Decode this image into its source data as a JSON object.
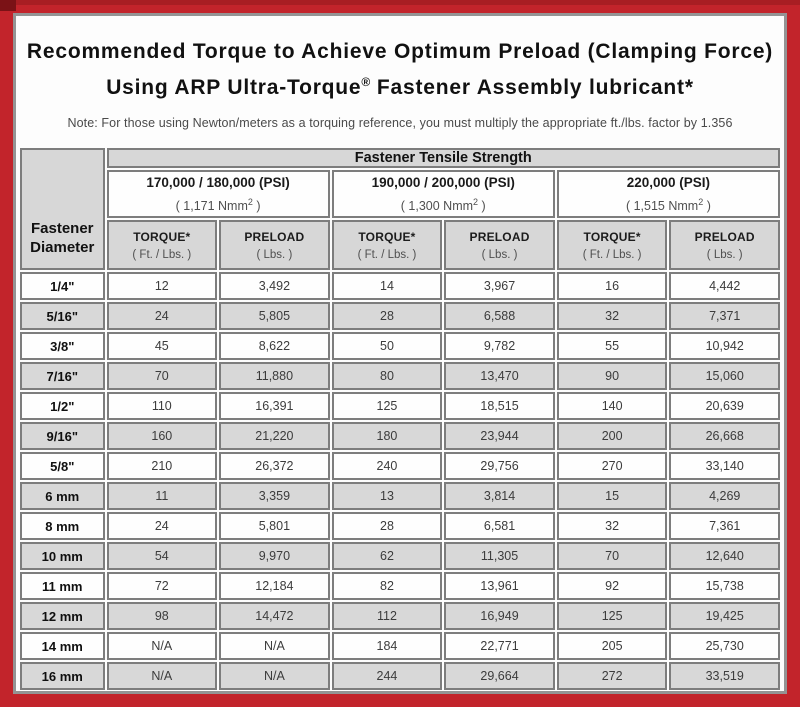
{
  "page": {
    "title_line1": "Recommended Torque to Achieve Optimum Preload (Clamping Force)",
    "title_line2_pre": "Using ARP Ultra-Torque",
    "title_line2_sup": "®",
    "title_line2_post": " Fastener Assembly lubricant*",
    "note": "Note: For those using Newton/meters as a torquing reference, you must multiply the appropriate ft./lbs. factor by 1.356"
  },
  "table": {
    "corner_header_line1": "Fastener",
    "corner_header_line2": "Diameter",
    "group_header": "Fastener Tensile Strength",
    "strength_groups": [
      {
        "psi": "170,000 / 180,000 (PSI)",
        "nmm_pre": "( 1,171 Nmm",
        "nmm_sup": "2",
        "nmm_post": " )"
      },
      {
        "psi": "190,000 / 200,000 (PSI)",
        "nmm_pre": "( 1,300 Nmm",
        "nmm_sup": "2",
        "nmm_post": " )"
      },
      {
        "psi": "220,000 (PSI)",
        "nmm_pre": "( 1,515 Nmm",
        "nmm_sup": "2",
        "nmm_post": " )"
      }
    ],
    "sub_headers": [
      {
        "label": "TORQUE*",
        "unit": "( Ft. / Lbs. )"
      },
      {
        "label": "PRELOAD",
        "unit": "( Lbs. )"
      }
    ],
    "rows": [
      {
        "diameter": "1/4\"",
        "values": [
          "12",
          "3,492",
          "14",
          "3,967",
          "16",
          "4,442"
        ]
      },
      {
        "diameter": "5/16\"",
        "values": [
          "24",
          "5,805",
          "28",
          "6,588",
          "32",
          "7,371"
        ]
      },
      {
        "diameter": "3/8\"",
        "values": [
          "45",
          "8,622",
          "50",
          "9,782",
          "55",
          "10,942"
        ]
      },
      {
        "diameter": "7/16\"",
        "values": [
          "70",
          "11,880",
          "80",
          "13,470",
          "90",
          "15,060"
        ]
      },
      {
        "diameter": "1/2\"",
        "values": [
          "110",
          "16,391",
          "125",
          "18,515",
          "140",
          "20,639"
        ]
      },
      {
        "diameter": "9/16\"",
        "values": [
          "160",
          "21,220",
          "180",
          "23,944",
          "200",
          "26,668"
        ]
      },
      {
        "diameter": "5/8\"",
        "values": [
          "210",
          "26,372",
          "240",
          "29,756",
          "270",
          "33,140"
        ]
      },
      {
        "diameter": "6 mm",
        "values": [
          "11",
          "3,359",
          "13",
          "3,814",
          "15",
          "4,269"
        ]
      },
      {
        "diameter": "8 mm",
        "values": [
          "24",
          "5,801",
          "28",
          "6,581",
          "32",
          "7,361"
        ]
      },
      {
        "diameter": "10 mm",
        "values": [
          "54",
          "9,970",
          "62",
          "11,305",
          "70",
          "12,640"
        ]
      },
      {
        "diameter": "11 mm",
        "values": [
          "72",
          "12,184",
          "82",
          "13,961",
          "92",
          "15,738"
        ]
      },
      {
        "diameter": "12 mm",
        "values": [
          "98",
          "14,472",
          "112",
          "16,949",
          "125",
          "19,425"
        ]
      },
      {
        "diameter": "14 mm",
        "values": [
          "N/A",
          "N/A",
          "184",
          "22,771",
          "205",
          "25,730"
        ]
      },
      {
        "diameter": "16 mm",
        "values": [
          "N/A",
          "N/A",
          "244",
          "29,664",
          "272",
          "33,519"
        ]
      }
    ]
  },
  "colors": {
    "frame_red": "#c2242b",
    "frame_dark_corner": "#7b1216",
    "panel_bg": "#fdfdfd",
    "panel_border": "#949494",
    "header_gray": "#d7d7d7",
    "row_alt_gray": "#d8d8d8",
    "cell_border": "#7d7d7d"
  }
}
